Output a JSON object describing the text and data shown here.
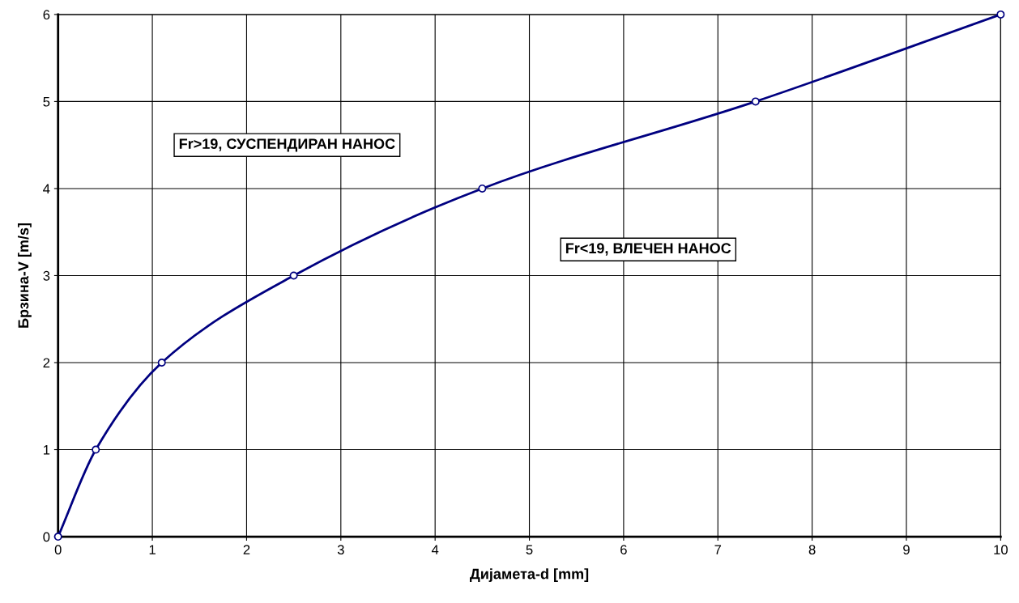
{
  "chart_data": {
    "type": "line",
    "xlabel": "Дијамета-d [mm]",
    "ylabel": "Брзина-V [m/s]",
    "x": [
      0,
      0.4,
      1.1,
      2.5,
      4.5,
      7.4,
      10
    ],
    "series": [
      {
        "color": "#000080",
        "values": [
          0,
          1,
          2,
          3,
          4,
          5,
          6
        ]
      }
    ],
    "xlim": [
      0,
      10
    ],
    "ylim": [
      0,
      6
    ],
    "xticks": [
      0,
      1,
      2,
      3,
      4,
      5,
      6,
      7,
      8,
      9,
      10
    ],
    "yticks": [
      0,
      1,
      2,
      3,
      4,
      5,
      6
    ],
    "grid": true,
    "marker": "circle",
    "line_style": "solid",
    "annotations": [
      "Fr>19, СУСПЕНДИРАН НАНОС",
      "Fr<19, ВЛЕЧЕН НАНОС"
    ]
  }
}
